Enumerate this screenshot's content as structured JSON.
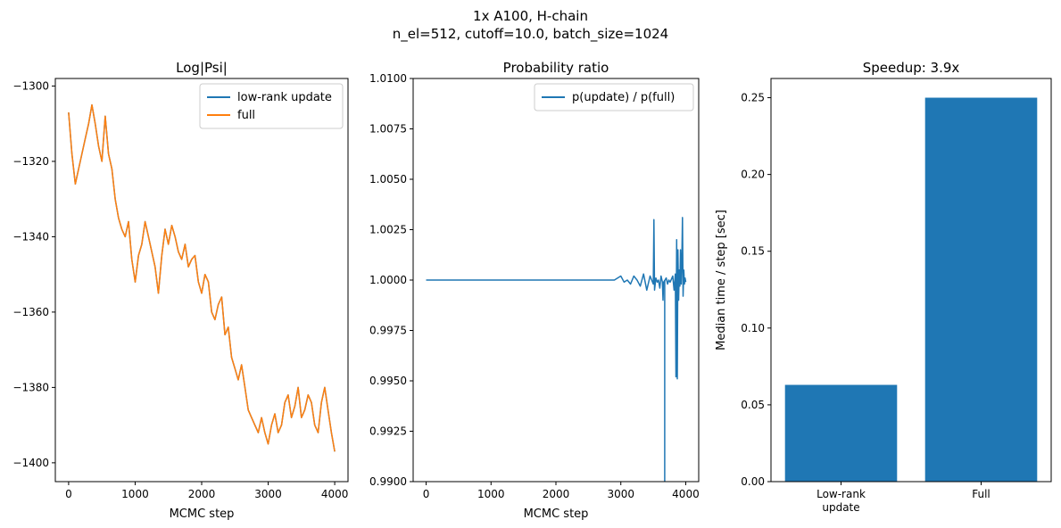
{
  "figure": {
    "suptitle_line1": "1x A100, H-chain",
    "suptitle_line2": "n_el=512, cutoff=10.0, batch_size=1024"
  },
  "colors": {
    "blue": "#1f77b4",
    "orange": "#ff7f0e"
  },
  "chart_data": [
    {
      "type": "line",
      "title": "Log|Psi|",
      "xlabel": "MCMC step",
      "ylabel": "",
      "xlim": [
        -200,
        4200
      ],
      "ylim": [
        -1405,
        -1298
      ],
      "xticks": [
        0,
        1000,
        2000,
        3000,
        4000
      ],
      "yticks": [
        -1300,
        -1320,
        -1340,
        -1360,
        -1380,
        -1400
      ],
      "legend": {
        "position": "top-right",
        "entries": [
          "low-rank update",
          "full"
        ]
      },
      "series": [
        {
          "name": "low-rank update",
          "color": "#1f77b4",
          "x": [
            0,
            50,
            100,
            150,
            200,
            250,
            300,
            350,
            400,
            450,
            500,
            550,
            600,
            650,
            700,
            750,
            800,
            850,
            900,
            950,
            1000,
            1050,
            1100,
            1150,
            1200,
            1250,
            1300,
            1350,
            1400,
            1450,
            1500,
            1550,
            1600,
            1650,
            1700,
            1750,
            1800,
            1850,
            1900,
            1950,
            2000,
            2050,
            2100,
            2150,
            2200,
            2250,
            2300,
            2350,
            2400,
            2450,
            2500,
            2550,
            2600,
            2650,
            2700,
            2750,
            2800,
            2850,
            2900,
            2950,
            3000,
            3050,
            3100,
            3150,
            3200,
            3250,
            3300,
            3350,
            3400,
            3450,
            3500,
            3550,
            3600,
            3650,
            3700,
            3750,
            3800,
            3850,
            3900,
            3950,
            4000
          ],
          "y": [
            -1307,
            -1318,
            -1326,
            -1322,
            -1318,
            -1314,
            -1310,
            -1305,
            -1310,
            -1316,
            -1320,
            -1308,
            -1318,
            -1322,
            -1330,
            -1335,
            -1338,
            -1340,
            -1336,
            -1346,
            -1352,
            -1345,
            -1342,
            -1336,
            -1340,
            -1344,
            -1348,
            -1355,
            -1345,
            -1338,
            -1342,
            -1337,
            -1340,
            -1344,
            -1346,
            -1342,
            -1348,
            -1346,
            -1345,
            -1352,
            -1355,
            -1350,
            -1352,
            -1360,
            -1362,
            -1358,
            -1356,
            -1366,
            -1364,
            -1372,
            -1375,
            -1378,
            -1374,
            -1380,
            -1386,
            -1388,
            -1390,
            -1392,
            -1388,
            -1392,
            -1395,
            -1390,
            -1387,
            -1392,
            -1390,
            -1384,
            -1382,
            -1388,
            -1385,
            -1380,
            -1388,
            -1386,
            -1382,
            -1384,
            -1390,
            -1392,
            -1384,
            -1380,
            -1386,
            -1392,
            -1397
          ]
        },
        {
          "name": "full",
          "color": "#ff7f0e",
          "x": [
            0,
            50,
            100,
            150,
            200,
            250,
            300,
            350,
            400,
            450,
            500,
            550,
            600,
            650,
            700,
            750,
            800,
            850,
            900,
            950,
            1000,
            1050,
            1100,
            1150,
            1200,
            1250,
            1300,
            1350,
            1400,
            1450,
            1500,
            1550,
            1600,
            1650,
            1700,
            1750,
            1800,
            1850,
            1900,
            1950,
            2000,
            2050,
            2100,
            2150,
            2200,
            2250,
            2300,
            2350,
            2400,
            2450,
            2500,
            2550,
            2600,
            2650,
            2700,
            2750,
            2800,
            2850,
            2900,
            2950,
            3000,
            3050,
            3100,
            3150,
            3200,
            3250,
            3300,
            3350,
            3400,
            3450,
            3500,
            3550,
            3600,
            3650,
            3700,
            3750,
            3800,
            3850,
            3900,
            3950,
            4000
          ],
          "y": [
            -1307,
            -1318,
            -1326,
            -1322,
            -1318,
            -1314,
            -1310,
            -1305,
            -1310,
            -1316,
            -1320,
            -1308,
            -1318,
            -1322,
            -1330,
            -1335,
            -1338,
            -1340,
            -1336,
            -1346,
            -1352,
            -1345,
            -1342,
            -1336,
            -1340,
            -1344,
            -1348,
            -1355,
            -1345,
            -1338,
            -1342,
            -1337,
            -1340,
            -1344,
            -1346,
            -1342,
            -1348,
            -1346,
            -1345,
            -1352,
            -1355,
            -1350,
            -1352,
            -1360,
            -1362,
            -1358,
            -1356,
            -1366,
            -1364,
            -1372,
            -1375,
            -1378,
            -1374,
            -1380,
            -1386,
            -1388,
            -1390,
            -1392,
            -1388,
            -1392,
            -1395,
            -1390,
            -1387,
            -1392,
            -1390,
            -1384,
            -1382,
            -1388,
            -1385,
            -1380,
            -1388,
            -1386,
            -1382,
            -1384,
            -1390,
            -1392,
            -1384,
            -1380,
            -1386,
            -1392,
            -1397
          ]
        }
      ]
    },
    {
      "type": "line",
      "title": "Probability ratio",
      "xlabel": "MCMC step",
      "ylabel": "",
      "xlim": [
        -200,
        4200
      ],
      "ylim": [
        0.99,
        1.01
      ],
      "xticks": [
        0,
        1000,
        2000,
        3000,
        4000
      ],
      "yticks": [
        "1.0100",
        "1.0075",
        "1.0050",
        "1.0025",
        "1.0000",
        "0.9975",
        "0.9950",
        "0.9925",
        "0.9900"
      ],
      "legend": {
        "position": "top-right",
        "entries": [
          "p(update) / p(full)"
        ]
      },
      "series": [
        {
          "name": "p(update) / p(full)",
          "color": "#1f77b4",
          "x": [
            0,
            500,
            1000,
            1500,
            2000,
            2500,
            2900,
            3000,
            3050,
            3100,
            3150,
            3200,
            3250,
            3300,
            3350,
            3400,
            3450,
            3500,
            3510,
            3520,
            3540,
            3560,
            3580,
            3600,
            3620,
            3640,
            3650,
            3660,
            3680,
            3700,
            3720,
            3740,
            3760,
            3800,
            3820,
            3840,
            3850,
            3860,
            3870,
            3880,
            3890,
            3900,
            3910,
            3920,
            3930,
            3940,
            3950,
            3960,
            3970,
            3980,
            3990,
            4000
          ],
          "y": [
            1.0,
            1.0,
            1.0,
            1.0,
            1.0,
            1.0,
            1.0,
            1.0002,
            0.9999,
            1.0,
            0.9998,
            1.0002,
            1.0,
            0.9997,
            1.0003,
            0.9995,
            1.0002,
            0.9998,
            1.003,
            0.9995,
            1.0001,
            0.9999,
            1.0,
            0.9996,
            1.0002,
            0.9999,
            0.999,
            0.9999,
            1.0,
            1.0001,
            0.9998,
            1.0,
            0.9999,
            1.0002,
            0.9995,
            1.0003,
            0.9952,
            1.002,
            0.9951,
            1.0015,
            0.999,
            1.0005,
            0.9997,
            1.0015,
            0.9998,
            1.001,
            1.0031,
            0.9992,
            1.0005,
            0.9998,
            1.0001,
            0.9999
          ]
        },
        {
          "name": "",
          "color": "#1f77b4",
          "x": [
            3676,
            3676
          ],
          "y": [
            1.0,
            0.99
          ]
        }
      ]
    },
    {
      "type": "bar",
      "title": "Speedup: 3.9x",
      "xlabel": "",
      "ylabel": "Median time / step [sec]",
      "ylim": [
        0,
        0.2625
      ],
      "yticks": [
        "0.00",
        "0.05",
        "0.10",
        "0.15",
        "0.20",
        "0.25"
      ],
      "categories": [
        [
          "Low-rank",
          "update"
        ],
        [
          "Full"
        ]
      ],
      "values": [
        0.063,
        0.25
      ],
      "color": "#1f77b4"
    }
  ]
}
